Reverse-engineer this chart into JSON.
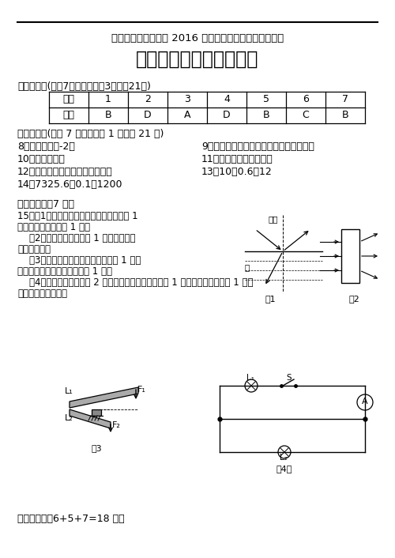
{
  "title_sub": "中山市教研基地学校 2016 年初中学业水平考试模拟试题",
  "title_main": "物理参考答案和评分标准",
  "section1_header": "一、选择题(本题7小题，每小题3分，共21分)",
  "table_headers": [
    "题号",
    "1",
    "2",
    "3",
    "4",
    "5",
    "6",
    "7"
  ],
  "table_answers": [
    "答案",
    "B",
    "D",
    "A",
    "D",
    "B",
    "C",
    "B"
  ],
  "section2_header": "二、填空题(本题 7 小题，每空 1 分，共 21 分)",
  "fill_items": [
    [
      "8．熔化、吸、-2；",
      "9、惯性、摩擦力（阻力）、匀速直线运动"
    ],
    [
      "10．远、左、凸",
      "11、加油机、减少、增加"
    ],
    [
      "12．保护电路、电流表示数、甲乙",
      "13、10、0.6、12"
    ],
    [
      "14．7325.6、0.1、1200",
      ""
    ]
  ],
  "section3_header": "三、作图题（7 分）",
  "section3_lines": [
    "15．（1）正确画出反射光线、折射光线各 1",
    "分，没有标出箭头扣 1 分。",
    "    （2）正确面出凹透镜给 1 分（写成凹透",
    "镜不扣分）。",
    "    （3）正确画出力臂并标明符号各给 1 分，",
    "没有标明符号或直角符号共扣 1 分。",
    "    （4）正确画出电路图给 2 分，未标出灯、开关符号扣 1 分，未标出相交点扣 1 分，",
    "物图不对应不给分。"
  ],
  "section4_header": "四、实验题（6+5+7=18 分）",
  "bg_color": "#ffffff",
  "fig1_label": "图1",
  "fig2_label": "图2",
  "fig3_label": "图3",
  "fig4_label": "图4乙"
}
